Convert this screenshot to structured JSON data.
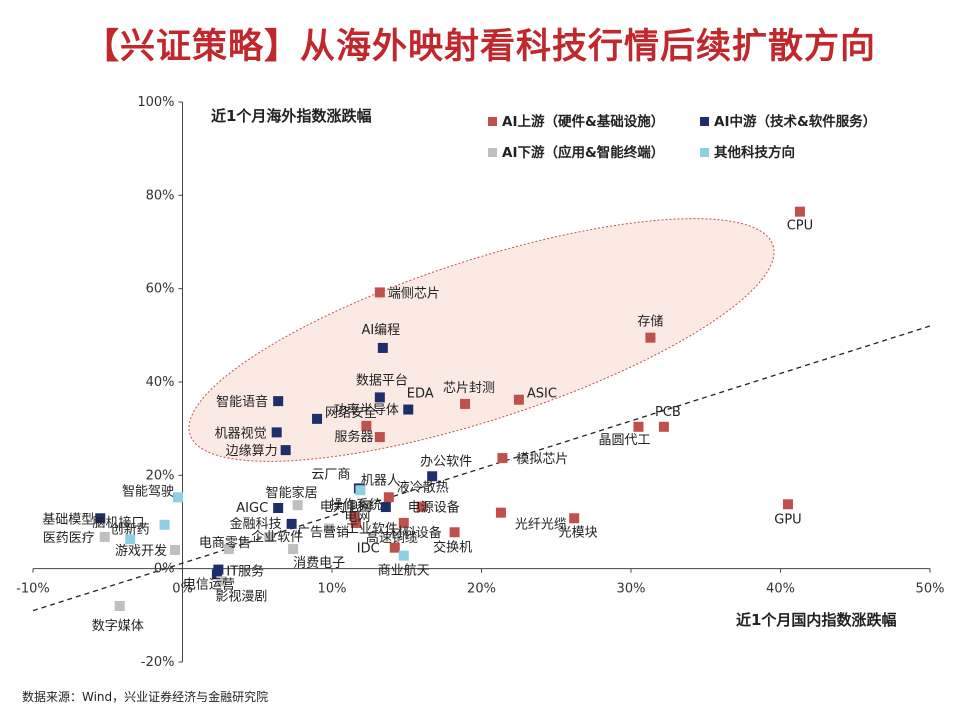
{
  "title": "【兴证策略】从海外映射看科技行情后续扩散方向",
  "source": "数据来源：Wind，兴业证券经济与金融研究院",
  "colors": {
    "title": "#c0282d",
    "upstream": "#c0504d",
    "midstream": "#1f2d6b",
    "downstream": "#bfbfbf",
    "other": "#8ecfe4",
    "ellipse_fill": "#fbe9e4",
    "ellipse_stroke": "#c0504d"
  },
  "chart_data": {
    "type": "scatter",
    "xlabel": "近1个月国内指数涨跌幅",
    "ylabel": "近1个月海外指数涨跌幅",
    "xlim": [
      -0.1,
      0.5
    ],
    "ylim": [
      -0.2,
      1.0
    ],
    "xticks": [
      "-10%",
      "0%",
      "10%",
      "20%",
      "30%",
      "40%",
      "50%"
    ],
    "yticks": [
      "-20%",
      "0%",
      "20%",
      "40%",
      "60%",
      "80%",
      "100%"
    ],
    "trend_line": [
      [
        -0.1,
        -0.09
      ],
      [
        0.5,
        0.52
      ]
    ],
    "highlight_ellipse": {
      "cx": 0.2,
      "cy": 0.49,
      "rx": 0.205,
      "ry": 0.285,
      "rotation_deg": -18
    },
    "legend": [
      {
        "key": "upstream",
        "label": "AI上游（硬件&基础设施）"
      },
      {
        "key": "midstream",
        "label": "AI中游（技术&软件服务）"
      },
      {
        "key": "downstream",
        "label": "AI下游（应用&智能终端）"
      },
      {
        "key": "other",
        "label": "其他科技方向"
      }
    ],
    "series": [
      {
        "name": "AI上游（硬件&基础设施）",
        "key": "upstream",
        "points": [
          {
            "label": "CPU",
            "x": 0.413,
            "y": 0.765
          },
          {
            "label": "端侧芯片",
            "x": 0.132,
            "y": 0.592
          },
          {
            "label": "存储",
            "x": 0.313,
            "y": 0.495
          },
          {
            "label": "芯片封测",
            "x": 0.189,
            "y": 0.353
          },
          {
            "label": "ASIC",
            "x": 0.225,
            "y": 0.362
          },
          {
            "label": "功率半导体",
            "x": 0.123,
            "y": 0.306
          },
          {
            "label": "服务器",
            "x": 0.132,
            "y": 0.282
          },
          {
            "label": "PCB",
            "x": 0.322,
            "y": 0.304
          },
          {
            "label": "晶圆代工",
            "x": 0.305,
            "y": 0.304
          },
          {
            "label": "模拟芯片",
            "x": 0.214,
            "y": 0.237
          },
          {
            "label": "GPU",
            "x": 0.405,
            "y": 0.138
          },
          {
            "label": "液冷散热",
            "x": 0.138,
            "y": 0.153
          },
          {
            "label": "电源设备",
            "x": 0.16,
            "y": 0.133
          },
          {
            "label": "电网",
            "x": 0.115,
            "y": 0.113
          },
          {
            "label": "工业软件",
            "x": 0.116,
            "y": 0.098
          },
          {
            "label": "材料设备",
            "x": 0.148,
            "y": 0.098
          },
          {
            "label": "光纤光缆",
            "x": 0.213,
            "y": 0.12
          },
          {
            "label": "光模块",
            "x": 0.262,
            "y": 0.108
          },
          {
            "label": "高速铜缆",
            "x": 0.116,
            "y": 0.098
          },
          {
            "label": "交换机",
            "x": 0.182,
            "y": 0.078
          },
          {
            "label": "IDC",
            "x": 0.142,
            "y": 0.045
          }
        ]
      },
      {
        "name": "AI中游（技术&软件服务）",
        "key": "midstream",
        "points": [
          {
            "label": "AI编程",
            "x": 0.134,
            "y": 0.473
          },
          {
            "label": "数据平台",
            "x": 0.132,
            "y": 0.367
          },
          {
            "label": "EDA",
            "x": 0.151,
            "y": 0.341
          },
          {
            "label": "智能语音",
            "x": 0.064,
            "y": 0.359
          },
          {
            "label": "网络安全",
            "x": 0.09,
            "y": 0.321
          },
          {
            "label": "机器视觉",
            "x": 0.063,
            "y": 0.292
          },
          {
            "label": "边缘算力",
            "x": 0.069,
            "y": 0.254
          },
          {
            "label": "办公软件",
            "x": 0.167,
            "y": 0.198
          },
          {
            "label": "云厂商",
            "x": 0.118,
            "y": 0.172
          },
          {
            "label": "AIGC",
            "x": 0.064,
            "y": 0.13
          },
          {
            "label": "金融科技",
            "x": 0.073,
            "y": 0.096
          },
          {
            "label": "电力电网",
            "x": 0.136,
            "y": 0.132
          },
          {
            "label": "基础模型",
            "x": -0.055,
            "y": 0.108
          },
          {
            "label": "IT服务",
            "x": 0.024,
            "y": -0.002
          },
          {
            "label": "电信运营",
            "x": 0.023,
            "y": -0.012
          }
        ]
      },
      {
        "name": "AI下游（应用&智能终端）",
        "key": "downstream",
        "points": [
          {
            "label": "智能家居",
            "x": 0.077,
            "y": 0.136
          },
          {
            "label": "操作系统",
            "x": 0.124,
            "y": 0.136
          },
          {
            "label": "广告营销",
            "x": 0.098,
            "y": 0.086
          },
          {
            "label": "企业软件",
            "x": 0.058,
            "y": 0.068
          },
          {
            "label": "消费电子",
            "x": 0.074,
            "y": 0.042
          },
          {
            "label": "电商零售",
            "x": 0.031,
            "y": 0.042
          },
          {
            "label": "游戏开发",
            "x": -0.005,
            "y": 0.04
          },
          {
            "label": "医药医疗",
            "x": -0.052,
            "y": 0.068
          },
          {
            "label": "数字媒体",
            "x": -0.042,
            "y": -0.08
          },
          {
            "label": "影视漫剧",
            "x": 0.026,
            "y": -0.027
          }
        ]
      },
      {
        "name": "其他科技方向",
        "key": "other",
        "points": [
          {
            "label": "智能驾驶",
            "x": -0.003,
            "y": 0.153
          },
          {
            "label": "机器人",
            "x": 0.119,
            "y": 0.168
          },
          {
            "label": "脑机接口",
            "x": -0.012,
            "y": 0.094
          },
          {
            "label": "创新药",
            "x": -0.035,
            "y": 0.063
          },
          {
            "label": "商业航天",
            "x": 0.148,
            "y": 0.028
          }
        ]
      }
    ]
  }
}
